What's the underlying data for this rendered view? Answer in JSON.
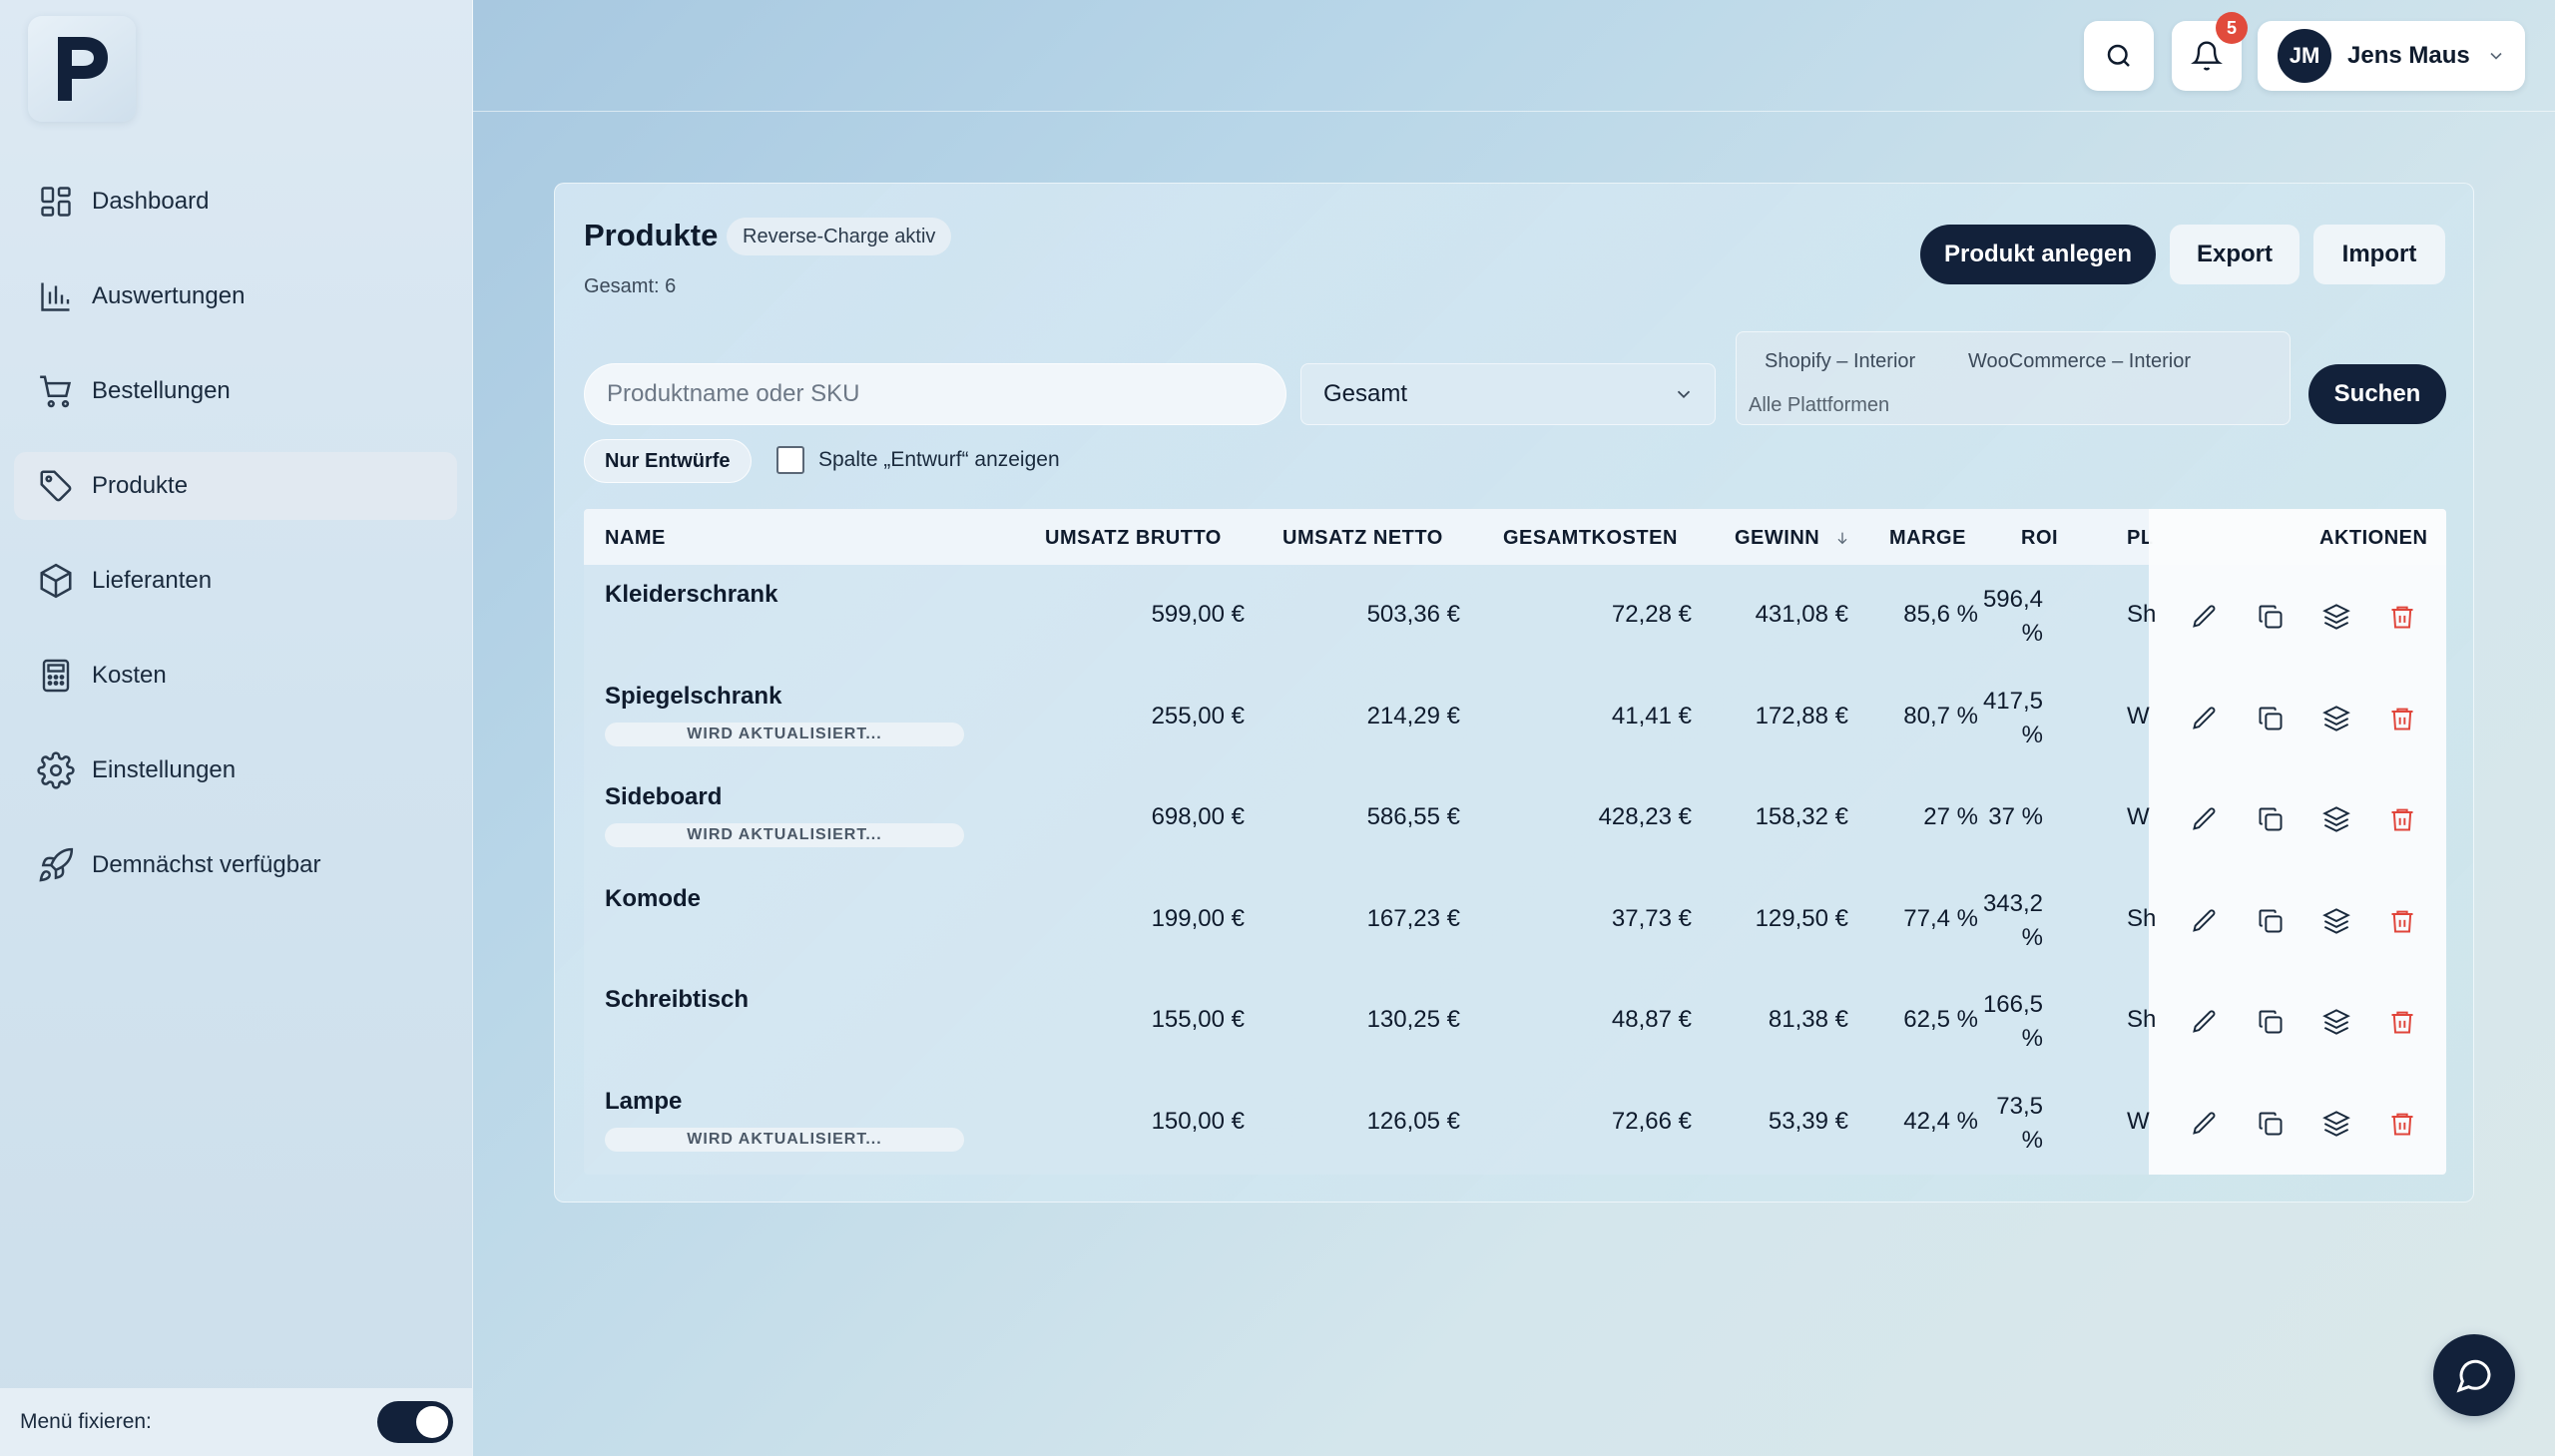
{
  "sidebar": {
    "logo_alt": "P",
    "items": [
      {
        "label": "Dashboard",
        "icon": "dashboard-icon",
        "active": false
      },
      {
        "label": "Auswertungen",
        "icon": "bar-chart-icon",
        "active": false
      },
      {
        "label": "Bestellungen",
        "icon": "cart-icon",
        "active": false
      },
      {
        "label": "Produkte",
        "icon": "tag-icon",
        "active": true
      },
      {
        "label": "Lieferanten",
        "icon": "box-icon",
        "active": false
      },
      {
        "label": "Kosten",
        "icon": "calculator-icon",
        "active": false
      },
      {
        "label": "Einstellungen",
        "icon": "gear-icon",
        "active": false
      },
      {
        "label": "Demnächst verfügbar",
        "icon": "rocket-icon",
        "active": false
      }
    ],
    "footer_label": "Menü fixieren:",
    "pin_menu_on": true
  },
  "header": {
    "notification_count": "5",
    "user_initials": "JM",
    "user_name": "Jens Maus"
  },
  "page": {
    "title": "Produkte",
    "badge": "Reverse-Charge aktiv",
    "total": "Gesamt: 6",
    "btn_create": "Produkt anlegen",
    "btn_export": "Export",
    "btn_import": "Import"
  },
  "filters": {
    "search_placeholder": "Produktname oder SKU",
    "select_value": "Gesamt",
    "platform_tags": [
      "Shopify – Interior",
      "WooCommerce – Interior"
    ],
    "platform_placeholder": "Alle Plattformen",
    "search_button": "Suchen",
    "drafts_chip": "Nur Entwürfe",
    "show_draft_column": "Spalte „Entwurf“ anzeigen"
  },
  "table": {
    "headers": {
      "name": "NAME",
      "umsatz_brutto": "UMSATZ BRUTTO",
      "umsatz_netto": "UMSATZ NETTO",
      "gesamtkosten": "GESAMTKOSTEN",
      "gewinn": "GEWINN",
      "marge": "MARGE",
      "roi": "ROI",
      "plattform": "PL",
      "aktionen": "AKTIONEN"
    },
    "rows": [
      {
        "name": "Kleiderschrank",
        "status": "",
        "brutto": "599,00 €",
        "netto": "503,36 €",
        "kosten": "72,28 €",
        "gewinn": "431,08 €",
        "marge": "85,6 %",
        "roi1": "596,4",
        "roi2": "%",
        "plat": "Sh"
      },
      {
        "name": "Spiegelschrank",
        "status": "WIRD AKTUALISIERT...",
        "brutto": "255,00 €",
        "netto": "214,29 €",
        "kosten": "41,41 €",
        "gewinn": "172,88 €",
        "marge": "80,7 %",
        "roi1": "417,5",
        "roi2": "%",
        "plat": "W"
      },
      {
        "name": "Sideboard",
        "status": "WIRD AKTUALISIERT...",
        "brutto": "698,00 €",
        "netto": "586,55 €",
        "kosten": "428,23 €",
        "gewinn": "158,32 €",
        "marge": "27 %",
        "roi1": "37 %",
        "roi2": "",
        "plat": "W"
      },
      {
        "name": "Komode",
        "status": "",
        "brutto": "199,00 €",
        "netto": "167,23 €",
        "kosten": "37,73 €",
        "gewinn": "129,50 €",
        "marge": "77,4 %",
        "roi1": "343,2",
        "roi2": "%",
        "plat": "Sh"
      },
      {
        "name": "Schreibtisch",
        "status": "",
        "brutto": "155,00 €",
        "netto": "130,25 €",
        "kosten": "48,87 €",
        "gewinn": "81,38 €",
        "marge": "62,5 %",
        "roi1": "166,5",
        "roi2": "%",
        "plat": "Sh"
      },
      {
        "name": "Lampe",
        "status": "WIRD AKTUALISIERT...",
        "brutto": "150,00 €",
        "netto": "126,05 €",
        "kosten": "72,66 €",
        "gewinn": "53,39 €",
        "marge": "42,4 %",
        "roi1": "73,5",
        "roi2": "%",
        "plat": "W"
      }
    ],
    "row_actions": [
      "edit-icon",
      "duplicate-icon",
      "layers-icon",
      "trash-icon"
    ]
  },
  "colors": {
    "primary": "#12213a",
    "danger": "#e14b3c",
    "delete_icon": "#e0453b"
  }
}
